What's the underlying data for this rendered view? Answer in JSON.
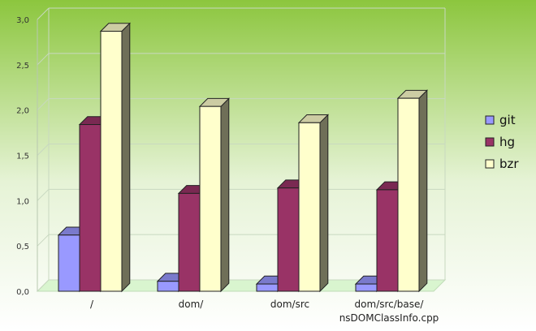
{
  "chart_data": {
    "type": "bar",
    "categories": [
      "/",
      "dom/",
      "dom/src",
      "dom/src/base/\nnsDOMClassInfo.cpp"
    ],
    "series": [
      {
        "name": "git",
        "values": [
          0.62,
          0.11,
          0.08,
          0.08
        ],
        "color": "#9999ff"
      },
      {
        "name": "hg",
        "values": [
          1.84,
          1.08,
          1.14,
          1.12
        ],
        "color": "#993366"
      },
      {
        "name": "bzr",
        "values": [
          2.87,
          2.04,
          1.86,
          2.13
        ],
        "color": "#ffffcc"
      }
    ],
    "yticks": [
      "0,0",
      "0,5",
      "1,0",
      "1,5",
      "2,0",
      "2,5",
      "3,0"
    ],
    "ylim": [
      0,
      3
    ],
    "grid": true,
    "legend": "right",
    "style": "3d",
    "title": "",
    "xlabel": "",
    "ylabel": ""
  },
  "colors": {
    "background_top": "#8cc63e",
    "background_bottom": "#ffffff",
    "bar_side": "#6f6f58",
    "bar_top": "#e8e8c0",
    "gridline": "#c8d8c0"
  }
}
